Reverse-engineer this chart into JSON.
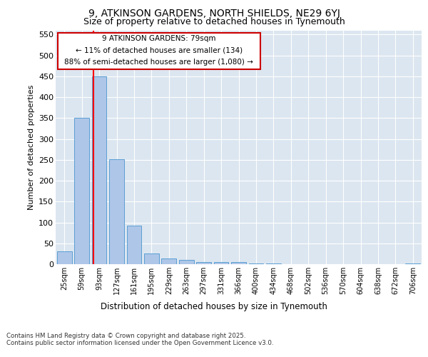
{
  "title_line1": "9, ATKINSON GARDENS, NORTH SHIELDS, NE29 6YJ",
  "title_line2": "Size of property relative to detached houses in Tynemouth",
  "xlabel": "Distribution of detached houses by size in Tynemouth",
  "ylabel": "Number of detached properties",
  "categories": [
    "25sqm",
    "59sqm",
    "93sqm",
    "127sqm",
    "161sqm",
    "195sqm",
    "229sqm",
    "263sqm",
    "297sqm",
    "331sqm",
    "366sqm",
    "400sqm",
    "434sqm",
    "468sqm",
    "502sqm",
    "536sqm",
    "570sqm",
    "604sqm",
    "638sqm",
    "672sqm",
    "706sqm"
  ],
  "values": [
    30,
    350,
    450,
    252,
    93,
    26,
    14,
    11,
    5,
    5,
    5,
    2,
    2,
    0,
    0,
    0,
    0,
    0,
    0,
    0,
    2
  ],
  "bar_color": "#aec6e8",
  "bar_edgecolor": "#5a9fd4",
  "ylim": [
    0,
    560
  ],
  "yticks": [
    0,
    50,
    100,
    150,
    200,
    250,
    300,
    350,
    400,
    450,
    500,
    550
  ],
  "property_line_x": 1.65,
  "annotation_text_line1": "9 ATKINSON GARDENS: 79sqm",
  "annotation_text_line2": "← 11% of detached houses are smaller (134)",
  "annotation_text_line3": "88% of semi-detached houses are larger (1,080) →",
  "annotation_box_color": "#cc0000",
  "background_color": "#dce6f0",
  "footer_line1": "Contains HM Land Registry data © Crown copyright and database right 2025.",
  "footer_line2": "Contains public sector information licensed under the Open Government Licence v3.0."
}
